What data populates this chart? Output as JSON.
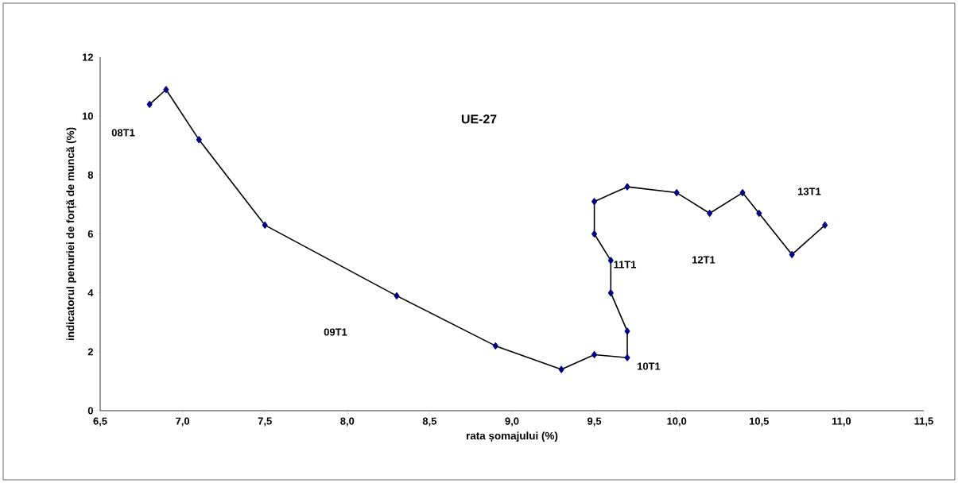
{
  "chart_data": {
    "type": "line",
    "title": "UE-27",
    "xlabel": "rata șomajului (%)",
    "ylabel": "indicatorul penuriei de forță de muncă (%)",
    "xlim": [
      6.5,
      11.5
    ],
    "ylim": [
      0,
      12
    ],
    "xticks": [
      {
        "value": 6.5,
        "label": "6,5"
      },
      {
        "value": 7,
        "label": "7,0"
      },
      {
        "value": 7.5,
        "label": "7,5"
      },
      {
        "value": 8,
        "label": "8,0"
      },
      {
        "value": 8.5,
        "label": "8,5"
      },
      {
        "value": 9,
        "label": "9,0"
      },
      {
        "value": 9.5,
        "label": "9,5"
      },
      {
        "value": 10,
        "label": "10,0"
      },
      {
        "value": 10.5,
        "label": "10,5"
      },
      {
        "value": 11,
        "label": "11,0"
      },
      {
        "value": 11.5,
        "label": "11,5"
      }
    ],
    "yticks": [
      0,
      2,
      4,
      6,
      8,
      10,
      12
    ],
    "marker": "diamond",
    "line_style": "solid",
    "series": [
      {
        "color": "#000080",
        "x": [
          6.8,
          6.9,
          7.1,
          7.5,
          8.3,
          8.9,
          9.3,
          9.5,
          9.7,
          9.7,
          9.6,
          9.6,
          9.5,
          9.5,
          9.7,
          10.0,
          10.2,
          10.4,
          10.5,
          10.7,
          10.9
        ],
        "values": [
          10.4,
          10.9,
          9.2,
          6.3,
          3.9,
          2.2,
          1.4,
          1.9,
          1.8,
          2.7,
          4.0,
          5.1,
          6.0,
          7.1,
          7.6,
          7.4,
          6.7,
          7.4,
          6.7,
          5.3,
          6.3
        ]
      }
    ],
    "annotations": [
      "08T1",
      "09T1",
      "10T1",
      "11T1",
      "12T1",
      "13T1"
    ]
  }
}
